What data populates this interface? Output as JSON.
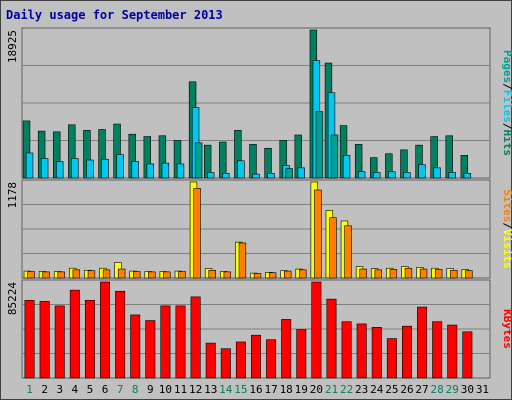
{
  "colors": {
    "background": "#c0c0c0",
    "plot": "#c0c0c0",
    "grid": "#808080",
    "title": "#0000a0",
    "pages": "#00a090",
    "files": "#00c8f0",
    "hits": "#008060",
    "visits": "#ffff00",
    "sites": "#ff8000",
    "kbytes": "#ff0000",
    "weekday_label": "#000000",
    "weekend_label": "#008060"
  },
  "chart_data": {
    "type": "bar",
    "title": "Daily usage for September 2013",
    "categories": [
      "1",
      "2",
      "3",
      "4",
      "5",
      "6",
      "7",
      "8",
      "9",
      "10",
      "11",
      "12",
      "13",
      "14",
      "15",
      "16",
      "17",
      "18",
      "19",
      "20",
      "21",
      "22",
      "23",
      "24",
      "25",
      "26",
      "27",
      "28",
      "29",
      "30",
      "31"
    ],
    "weekend_days": [
      "1",
      "7",
      "8",
      "14",
      "15",
      "21",
      "22",
      "28",
      "29"
    ],
    "panels": [
      {
        "id": "hits_files_pages",
        "max_label": "18925",
        "ylim": [
          0,
          18925
        ],
        "legend": [
          "Pages",
          "Files",
          "Hits"
        ],
        "series": [
          {
            "name": "Hits",
            "color": "hits",
            "values": [
              7300,
              6000,
              5900,
              6800,
              6100,
              6200,
              6900,
              5600,
              5300,
              5400,
              4800,
              12300,
              4200,
              4600,
              6100,
              4300,
              3800,
              4800,
              5500,
              19000,
              14700,
              6700,
              4300,
              2600,
              3100,
              3600,
              4200,
              5300,
              5400,
              2900,
              0
            ]
          },
          {
            "name": "Files",
            "color": "files",
            "values": [
              3200,
              2500,
              2100,
              2500,
              2300,
              2400,
              3000,
              2100,
              1800,
              1900,
              1800,
              9000,
              700,
              600,
              2200,
              500,
              600,
              1600,
              1300,
              15000,
              10900,
              2900,
              800,
              700,
              800,
              700,
              1700,
              1300,
              700,
              600,
              0
            ]
          },
          {
            "name": "Pages",
            "color": "pages",
            "values": [
              0,
              0,
              0,
              0,
              0,
              0,
              0,
              0,
              0,
              0,
              0,
              4500,
              0,
              0,
              0,
              0,
              0,
              1200,
              0,
              8500,
              5500,
              0,
              0,
              0,
              0,
              0,
              0,
              0,
              0,
              0,
              0
            ]
          }
        ]
      },
      {
        "id": "visits_sites",
        "max_label": "1178",
        "ylim": [
          0,
          1178
        ],
        "legend": [
          "Sites",
          "Visits"
        ],
        "series": [
          {
            "name": "Visits",
            "color": "visits",
            "values": [
              85,
              80,
              80,
              120,
              95,
              120,
              190,
              85,
              80,
              80,
              85,
              1178,
              115,
              80,
              440,
              60,
              70,
              90,
              110,
              1178,
              830,
              700,
              140,
              115,
              120,
              140,
              130,
              120,
              115,
              105,
              0
            ]
          },
          {
            "name": "Sites",
            "color": "sites",
            "values": [
              80,
              75,
              75,
              100,
              90,
              100,
              110,
              80,
              75,
              75,
              80,
              1100,
              95,
              75,
              430,
              55,
              65,
              85,
              100,
              1080,
              740,
              640,
              110,
              100,
              105,
              120,
              110,
              105,
              95,
              90,
              0
            ]
          }
        ]
      },
      {
        "id": "kbytes",
        "max_label": "85224",
        "ylim": [
          0,
          85224
        ],
        "legend": [
          "KBytes"
        ],
        "series": [
          {
            "name": "KBytes",
            "color": "kbytes",
            "values": [
              69000,
              68000,
              64000,
              78000,
              69000,
              87000,
              77000,
              56000,
              51000,
              64000,
              64000,
              72000,
              31000,
              26000,
              32000,
              38000,
              34000,
              52000,
              43000,
              86000,
              70000,
              50000,
              48000,
              45000,
              35000,
              46000,
              63000,
              50000,
              47000,
              41000,
              0
            ]
          }
        ]
      }
    ]
  }
}
